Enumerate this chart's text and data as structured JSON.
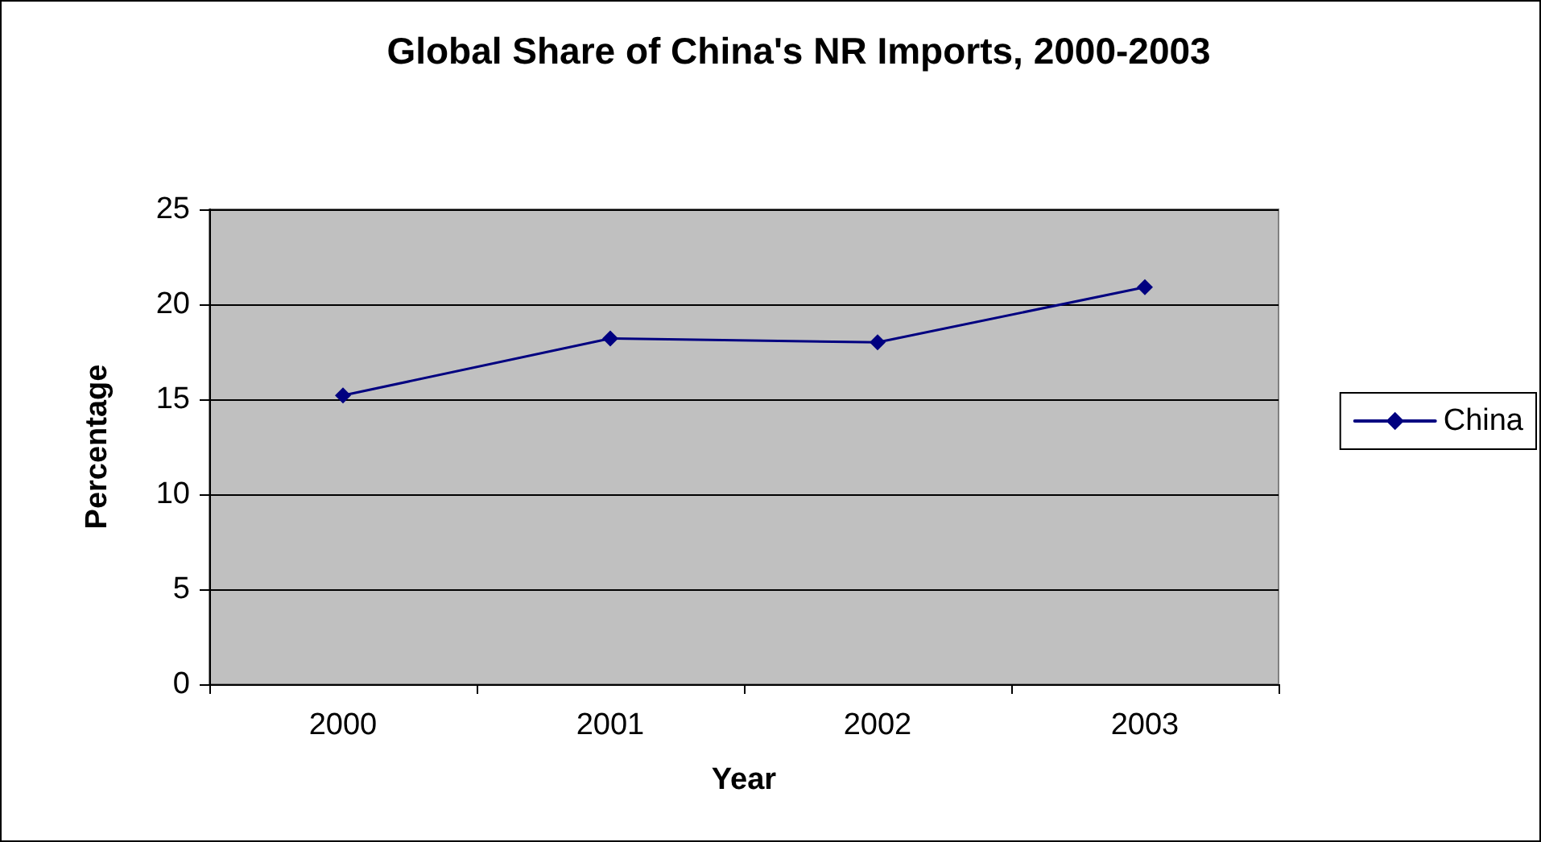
{
  "chart_data": {
    "type": "line",
    "title": "Global Share of China's NR Imports, 2000-2003",
    "xlabel": "Year",
    "ylabel": "Percentage",
    "categories": [
      "2000",
      "2001",
      "2002",
      "2003"
    ],
    "series": [
      {
        "name": "China",
        "color": "#000080",
        "values": [
          15.2,
          18.2,
          18.0,
          20.9
        ]
      }
    ],
    "ylim": [
      0,
      25
    ],
    "yticks": [
      0,
      5,
      10,
      15,
      20,
      25
    ],
    "grid": "y",
    "legend": "right",
    "marker": "diamond",
    "line_style": "solid"
  }
}
